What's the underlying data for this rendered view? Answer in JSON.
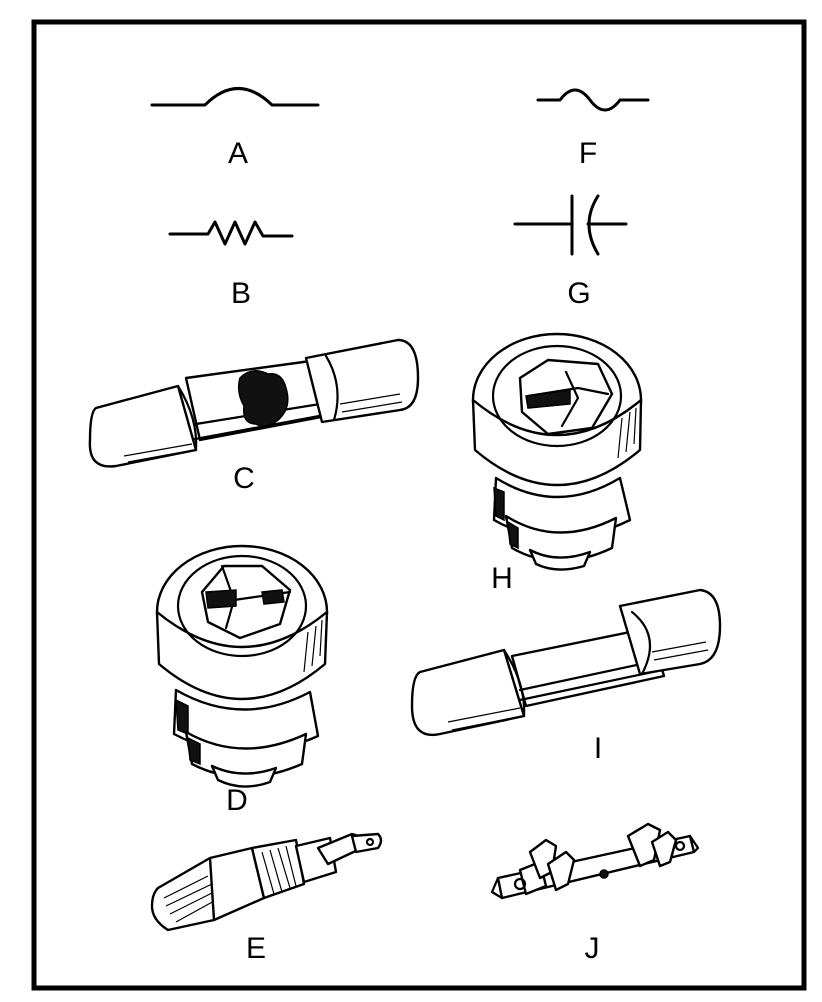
{
  "labels": {
    "a": "A",
    "b": "B",
    "c": "C",
    "d": "D",
    "e": "E",
    "f": "F",
    "g": "G",
    "h": "H",
    "i": "I",
    "j": "J"
  }
}
